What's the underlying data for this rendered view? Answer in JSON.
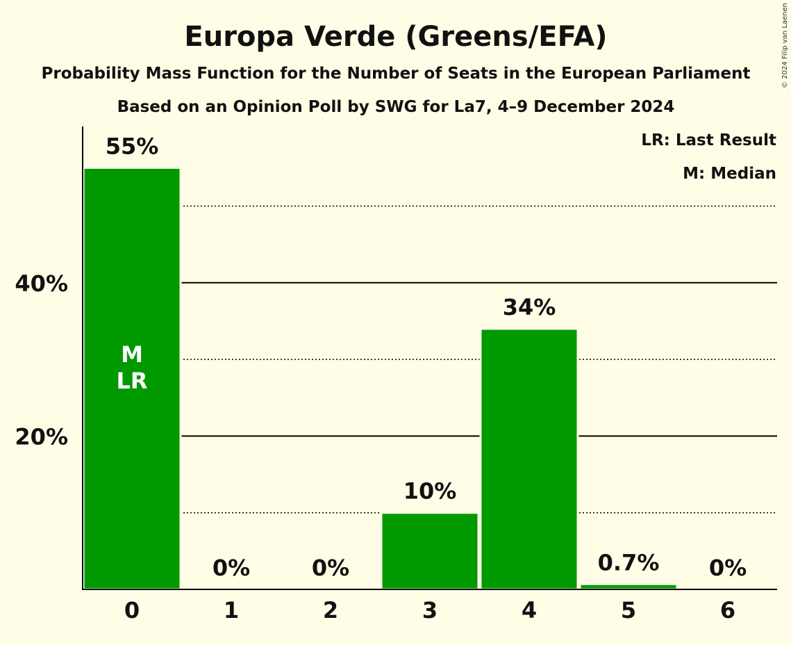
{
  "chart_data": {
    "type": "bar",
    "title": "Europa Verde (Greens/EFA)",
    "subtitle": "Probability Mass Function for the Number of Seats in the European Parliament",
    "subtitle2": "Based on an Opinion Poll by SWG for La7, 4–9 December 2024",
    "copyright": "© 2024 Filip van Laenen",
    "categories": [
      "0",
      "1",
      "2",
      "3",
      "4",
      "5",
      "6"
    ],
    "values": [
      55,
      0,
      0,
      10,
      34,
      0.7,
      0
    ],
    "value_labels": [
      "55%",
      "0%",
      "0%",
      "10%",
      "34%",
      "0.7%",
      "0%"
    ],
    "ylim": [
      0,
      60
    ],
    "major_ticks": [
      20,
      40
    ],
    "major_tick_labels": [
      "20%",
      "40%"
    ],
    "minor_gridlines": [
      10,
      30,
      50
    ],
    "bar_color": "#009900",
    "median_index": 0,
    "last_result_index": 0,
    "median_marker": "M",
    "last_result_marker": "LR",
    "legend": {
      "position": "top-right",
      "last_result": "LR: Last Result",
      "median": "M: Median"
    }
  }
}
